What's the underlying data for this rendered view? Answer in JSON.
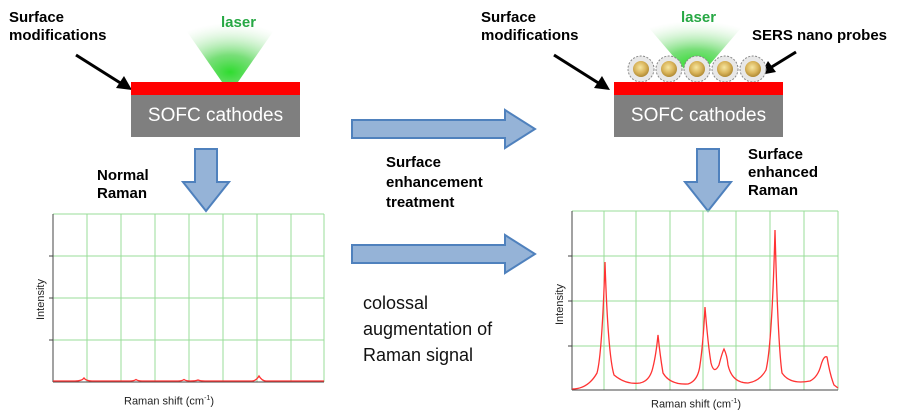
{
  "left_panel": {
    "surface_label_line1": "Surface",
    "surface_label_line2": "modifications",
    "laser_label": "laser",
    "cathode_label": "SOFC cathodes",
    "raman_label_line1": "Normal",
    "raman_label_line2": "Raman",
    "plot_ylabel": "Intensity",
    "plot_xlabel": "Raman shift (cm",
    "plot_xlabel_sup": "-1",
    "plot_xlabel_end": ")"
  },
  "right_panel": {
    "surface_label_line1": "Surface",
    "surface_label_line2": "modifications",
    "laser_label": "laser",
    "probes_label": "SERS nano probes",
    "cathode_label": "SOFC cathodes",
    "raman_label_line1": "Surface",
    "raman_label_line2": "enhanced",
    "raman_label_line3": "Raman",
    "plot_ylabel": "Intensity",
    "plot_xlabel": "Raman shift (cm",
    "plot_xlabel_sup": "-1",
    "plot_xlabel_end": ")"
  },
  "middle": {
    "treatment_line1": "Surface",
    "treatment_line2": "enhancement",
    "treatment_line3": "treatment",
    "augment_line1": "colossal",
    "augment_line2": "augmentation of",
    "augment_line3": "Raman signal"
  },
  "colors": {
    "laser_green": "#27a844",
    "surface_red": "#ff0000",
    "cathode_gray": "#7f7f7f",
    "arrow_fill": "#95b3d7",
    "arrow_stroke": "#4f81bd",
    "grid_green": "#99dd99",
    "spectrum_red": "#ff3333"
  },
  "icons": [
    "laser-beam-icon",
    "nano-probe-icon",
    "arrow-right-icon",
    "arrow-down-icon"
  ]
}
